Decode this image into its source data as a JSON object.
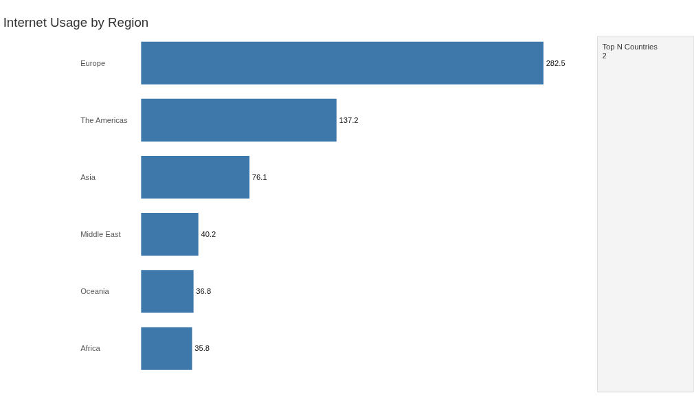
{
  "chart_data": [
    {
      "type": "bar",
      "title": "Internet Usage by Region",
      "orientation": "horizontal",
      "categories": [
        "Europe",
        "The Americas",
        "Asia",
        "Middle East",
        "Oceania",
        "Africa"
      ],
      "values": [
        282.5,
        137.2,
        76.1,
        40.2,
        36.8,
        35.8
      ],
      "color": "#3e78ab",
      "data_labels": true,
      "grid": false
    },
    {
      "type": "other",
      "annotations": [
        "Top N Countries",
        "2"
      ]
    }
  ]
}
